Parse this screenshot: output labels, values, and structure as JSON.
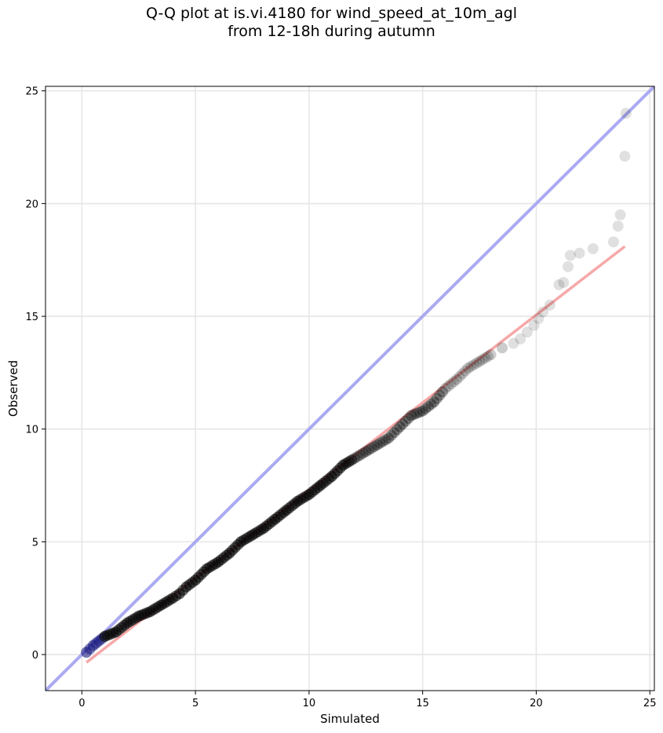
{
  "chart_data": {
    "type": "scatter",
    "title": "Q-Q plot at is.vi.4180 for wind_speed_at_10m_agl",
    "subtitle": "from 12-18h during autumn",
    "xlabel": "Simulated",
    "ylabel": "Observed",
    "xlim": [
      -1.6,
      25.2
    ],
    "ylim": [
      -1.6,
      25.2
    ],
    "x_ticks": [
      0,
      5,
      10,
      15,
      20,
      25
    ],
    "y_ticks": [
      0,
      5,
      10,
      15,
      20,
      25
    ],
    "grid": true,
    "legend": "none",
    "colors": {
      "points": "#000000",
      "identity_line": "#aaaaf2",
      "fit_line": "#f5a3a3",
      "grid": "#e6e6e6",
      "low_tail_points": "#1a1a80"
    },
    "series": [
      {
        "kind": "quantile-points",
        "x": [
          0.2,
          0.5,
          1.0,
          1.5,
          2.0,
          2.5,
          3.0,
          3.5,
          4.0,
          4.3,
          4.6,
          5.0,
          5.5,
          6.0,
          6.5,
          7.0,
          7.5,
          8.0,
          8.5,
          9.0,
          9.5,
          10.0,
          10.5,
          11.0,
          11.5,
          12.0,
          12.5,
          13.0,
          13.5,
          14.0,
          14.5,
          15.0,
          15.5,
          16.0,
          16.5,
          17.0,
          17.5,
          18.0,
          18.5,
          19.0,
          19.3,
          19.6,
          19.9,
          20.1,
          20.3,
          20.6,
          21.0,
          21.2,
          21.4,
          21.5,
          21.9,
          22.5,
          23.4,
          23.6,
          23.7,
          23.9,
          23.95
        ],
        "y": [
          0.1,
          0.4,
          0.8,
          1.0,
          1.4,
          1.7,
          1.9,
          2.2,
          2.5,
          2.7,
          3.0,
          3.3,
          3.8,
          4.1,
          4.5,
          5.0,
          5.3,
          5.6,
          6.0,
          6.4,
          6.8,
          7.1,
          7.5,
          7.9,
          8.4,
          8.7,
          9.0,
          9.3,
          9.6,
          10.1,
          10.6,
          10.8,
          11.2,
          11.8,
          12.2,
          12.7,
          13.0,
          13.3,
          13.6,
          13.8,
          14.0,
          14.3,
          14.6,
          14.9,
          15.2,
          15.5,
          16.4,
          16.5,
          17.2,
          17.7,
          17.8,
          18.0,
          18.3,
          19.0,
          19.5,
          22.1,
          24.0
        ]
      },
      {
        "kind": "identity-line",
        "x": [
          -1.6,
          25.2
        ],
        "y": [
          -1.6,
          25.2
        ]
      },
      {
        "kind": "fit-line",
        "x": [
          0.2,
          23.9
        ],
        "y": [
          -0.35,
          18.1
        ]
      }
    ]
  }
}
